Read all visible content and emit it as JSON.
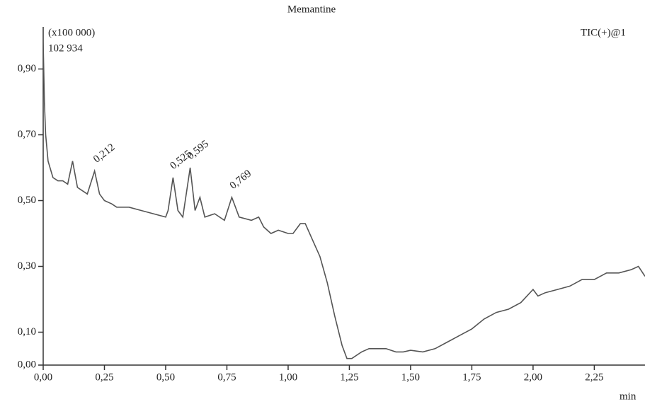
{
  "chart_data": {
    "type": "line",
    "title": "Memantine",
    "scale_note": "(x100 000)",
    "max_intensity": "102 934",
    "trace_label": "TIC(+)@1",
    "x_label": "min",
    "color": "#555555",
    "x": [
      0,
      0.005,
      0.01,
      0.02,
      0.04,
      0.06,
      0.08,
      0.1,
      0.12,
      0.14,
      0.16,
      0.18,
      0.21,
      0.23,
      0.25,
      0.28,
      0.3,
      0.35,
      0.4,
      0.45,
      0.5,
      0.51,
      0.53,
      0.55,
      0.57,
      0.6,
      0.62,
      0.64,
      0.66,
      0.7,
      0.74,
      0.77,
      0.8,
      0.85,
      0.88,
      0.9,
      0.93,
      0.96,
      1,
      1.02,
      1.05,
      1.07,
      1.1,
      1.13,
      1.16,
      1.19,
      1.22,
      1.24,
      1.26,
      1.3,
      1.33,
      1.37,
      1.4,
      1.44,
      1.47,
      1.5,
      1.55,
      1.6,
      1.65,
      1.7,
      1.75,
      1.8,
      1.85,
      1.9,
      1.95,
      2,
      2.02,
      2.05,
      2.1,
      2.15,
      2.2,
      2.25,
      2.3,
      2.35,
      2.4,
      2.43,
      2.457
    ],
    "values": [
      0.98,
      0.8,
      0.7,
      0.62,
      0.57,
      0.56,
      0.56,
      0.55,
      0.62,
      0.54,
      0.53,
      0.52,
      0.59,
      0.52,
      0.5,
      0.49,
      0.48,
      0.48,
      0.47,
      0.46,
      0.45,
      0.47,
      0.57,
      0.47,
      0.45,
      0.6,
      0.47,
      0.51,
      0.45,
      0.46,
      0.44,
      0.51,
      0.45,
      0.44,
      0.45,
      0.42,
      0.4,
      0.41,
      0.4,
      0.4,
      0.43,
      0.43,
      0.38,
      0.33,
      0.25,
      0.15,
      0.06,
      0.02,
      0.02,
      0.04,
      0.05,
      0.05,
      0.05,
      0.04,
      0.04,
      0.045,
      0.04,
      0.05,
      0.07,
      0.09,
      0.11,
      0.14,
      0.16,
      0.17,
      0.19,
      0.23,
      0.21,
      0.22,
      0.23,
      0.24,
      0.26,
      0.26,
      0.28,
      0.28,
      0.29,
      0.3,
      0.27
    ],
    "annotations": [
      {
        "x": 0.212,
        "y": 0.59,
        "label": "0,212"
      },
      {
        "x": 0.525,
        "y": 0.57,
        "label": "0,525"
      },
      {
        "x": 0.595,
        "y": 0.6,
        "label": "0,595"
      },
      {
        "x": 0.769,
        "y": 0.51,
        "label": "0,769"
      }
    ],
    "xlim": [
      0,
      2.457
    ],
    "ylim": [
      0,
      1.028
    ],
    "xticks": [
      {
        "value": 0,
        "label": "0,00"
      },
      {
        "value": 0.25,
        "label": "0,25"
      },
      {
        "value": 0.5,
        "label": "0,50"
      },
      {
        "value": 0.75,
        "label": "0,75"
      },
      {
        "value": 1,
        "label": "1,00"
      },
      {
        "value": 1.25,
        "label": "1,25"
      },
      {
        "value": 1.5,
        "label": "1,50"
      },
      {
        "value": 1.75,
        "label": "1,75"
      },
      {
        "value": 2,
        "label": "2,00"
      },
      {
        "value": 2.25,
        "label": "2,25"
      }
    ],
    "yticks": [
      {
        "value": 0,
        "label": "0,00"
      },
      {
        "value": 0.1,
        "label": "0,10"
      },
      {
        "value": 0.3,
        "label": "0,30"
      },
      {
        "value": 0.5,
        "label": "0,50"
      },
      {
        "value": 0.7,
        "label": "0,70"
      },
      {
        "value": 0.9,
        "label": "0,90"
      }
    ]
  }
}
